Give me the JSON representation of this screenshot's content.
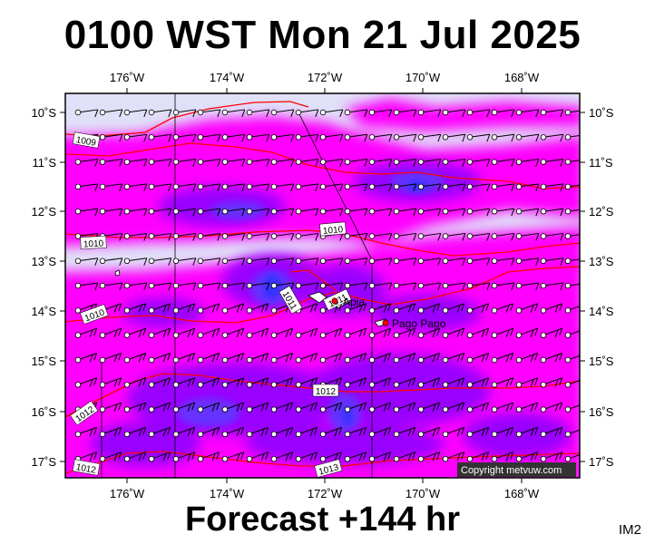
{
  "title": "0100 WST Mon 21 Jul 2025",
  "footer": "Forecast +144 hr",
  "model_id": "IM2",
  "copyright": "Copyright metvuw.com",
  "map": {
    "lon_range": [
      -177.3,
      -166.9
    ],
    "lat_range": [
      -17.3,
      -9.6
    ],
    "lon_ticks": [
      "176˚W",
      "174˚W",
      "172˚W",
      "170˚W",
      "168˚W"
    ],
    "lat_ticks": [
      "10˚S",
      "11˚S",
      "12˚S",
      "13˚S",
      "14˚S",
      "15˚S",
      "16˚S",
      "17˚S"
    ],
    "colors": {
      "background": "#e0e0f8",
      "magenta": "#ff00ff",
      "violet": "#9900ff",
      "indigo": "#6633ff",
      "blue": "#3333ff",
      "isobar": "#ff0000"
    },
    "isobar_labels": [
      "1009",
      "1010",
      "1010",
      "1010",
      "1011",
      "1011",
      "1012",
      "1012",
      "1012",
      "1013"
    ],
    "places": [
      {
        "name": "Apia",
        "lon": -171.75,
        "lat": -13.83
      },
      {
        "name": "Pago Pago",
        "lon": -170.7,
        "lat": -14.28
      }
    ],
    "wind_barbs": "grid"
  }
}
